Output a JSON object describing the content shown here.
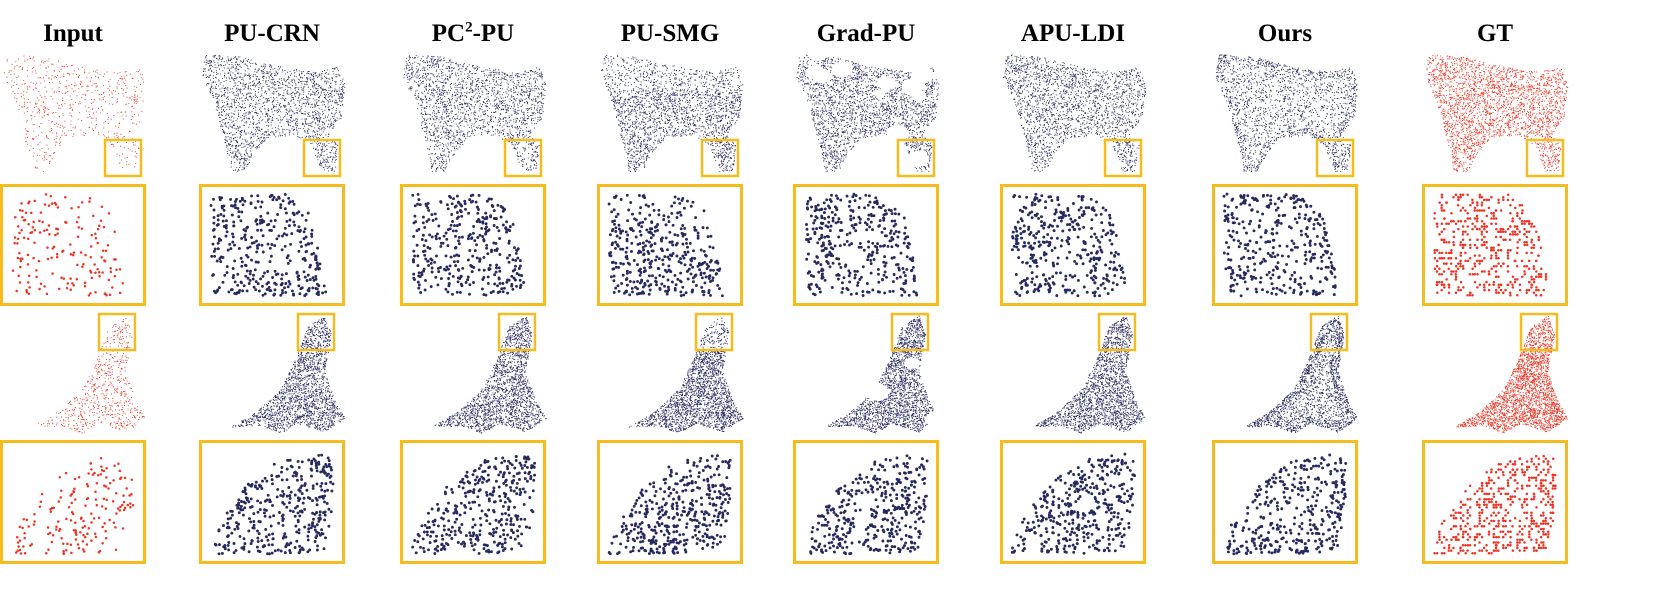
{
  "figure": {
    "columns": [
      {
        "id": "input",
        "label": "Input",
        "sup": "",
        "suffix": "",
        "color": "#ee3322",
        "style": "input"
      },
      {
        "id": "pu-crn",
        "label": "PU-CRN",
        "sup": "",
        "suffix": "",
        "color": "#262a5e",
        "style": "crn"
      },
      {
        "id": "pc2-pu",
        "label": "PC",
        "sup": "2",
        "suffix": "-PU",
        "color": "#262a5e",
        "style": "pc2"
      },
      {
        "id": "pu-smg",
        "label": "PU-SMG",
        "sup": "",
        "suffix": "",
        "color": "#262a5e",
        "style": "smg"
      },
      {
        "id": "grad-pu",
        "label": "Grad-PU",
        "sup": "",
        "suffix": "",
        "color": "#262a5e",
        "style": "grad"
      },
      {
        "id": "apu-ldi",
        "label": "APU-LDI",
        "sup": "",
        "suffix": "",
        "color": "#262a5e",
        "style": "apu"
      },
      {
        "id": "ours",
        "label": "Ours",
        "sup": "",
        "suffix": "",
        "color": "#262a5e",
        "style": "ours"
      },
      {
        "id": "gt",
        "label": "GT",
        "sup": "",
        "suffix": "",
        "color": "#ee3322",
        "style": "gt"
      }
    ],
    "rows": [
      {
        "object": "bear",
        "type": "full"
      },
      {
        "object": "bear",
        "type": "zoom"
      },
      {
        "object": "seal",
        "type": "full"
      },
      {
        "object": "seal",
        "type": "zoom"
      }
    ],
    "zoom_box_color": "#f6bc1d"
  }
}
